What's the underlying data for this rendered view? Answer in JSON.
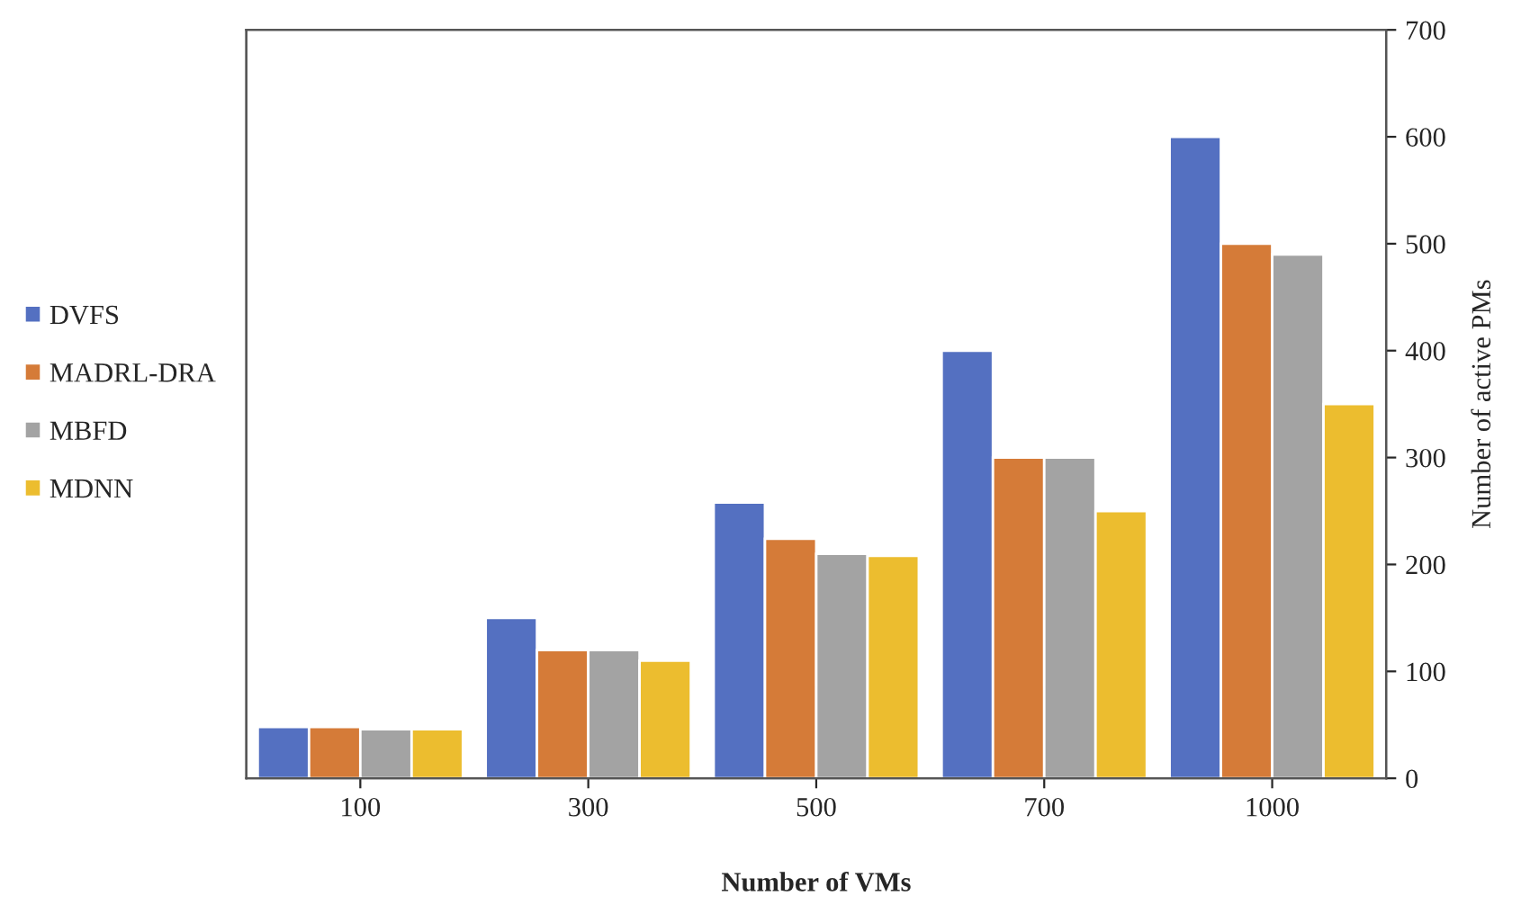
{
  "chart_data": {
    "type": "bar",
    "xlabel": "Number of VMs",
    "y2label": "Number of active PMs",
    "categories": [
      "100",
      "300",
      "500",
      "700",
      "1000"
    ],
    "series": [
      {
        "name": "DVFS",
        "color": "#5470c1",
        "values": [
          48,
          150,
          258,
          400,
          600
        ],
        "axis": "y2"
      },
      {
        "name": "MADRL-DRA",
        "color": "#d57b38",
        "values": [
          48,
          120,
          224,
          300,
          500
        ],
        "axis": "y2"
      },
      {
        "name": "MBFD",
        "color": "#a3a3a3",
        "values": [
          46,
          120,
          210,
          300,
          490
        ],
        "axis": "y2"
      },
      {
        "name": "MDNN",
        "color": "#ecbd2f",
        "values": [
          46,
          110,
          208,
          250,
          350
        ],
        "axis": "y2"
      }
    ],
    "y2lim": [
      0,
      700
    ],
    "y2ticks": [
      0,
      100,
      200,
      300,
      400,
      500,
      600,
      700
    ],
    "legend": "left",
    "grid": false
  }
}
